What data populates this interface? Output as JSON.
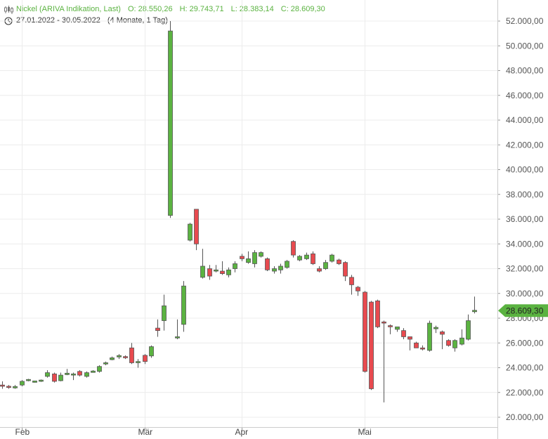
{
  "header": {
    "instrument": "Nickel (ARIVA Indikation, Last)",
    "open": "O: 28.550,26",
    "high": "H: 29.743,71",
    "low": "L: 28.383,14",
    "close": "C: 28.609,30",
    "range": "27.01.2022 - 30.05.2022",
    "period": "(4 Monate, 1 Tag)"
  },
  "colors": {
    "up": "#5bb341",
    "down": "#e84a4f",
    "grid": "#ececec",
    "last_price_tag": "#5bb341"
  },
  "icons": {
    "chart_type": "candlestick-icon",
    "period": "clock-icon"
  },
  "chart_data": {
    "type": "candlestick",
    "ylim": [
      19400,
      53000
    ],
    "y_ticks": [
      "52.000,00",
      "50.000,00",
      "48.000,00",
      "46.000,00",
      "44.000,00",
      "42.000,00",
      "40.000,00",
      "38.000,00",
      "36.000,00",
      "34.000,00",
      "32.000,00",
      "30.000,00",
      "28.000,00",
      "26.000,00",
      "24.000,00",
      "22.000,00",
      "20.000,00"
    ],
    "x_ticks": [
      "Feb",
      "Mär",
      "Apr",
      "Mai"
    ],
    "last_price": "28.609,30",
    "series": [
      {
        "o": 22600,
        "h": 22900,
        "l": 22300,
        "c": 22500
      },
      {
        "o": 22500,
        "h": 22600,
        "l": 22300,
        "c": 22400
      },
      {
        "o": 22400,
        "h": 22600,
        "l": 22300,
        "c": 22450
      },
      {
        "o": 22600,
        "h": 23000,
        "l": 22500,
        "c": 22900
      },
      {
        "o": 22950,
        "h": 23100,
        "l": 22900,
        "c": 23050
      },
      {
        "o": 22850,
        "h": 22950,
        "l": 22800,
        "c": 22900
      },
      {
        "o": 22900,
        "h": 23050,
        "l": 22850,
        "c": 23000
      },
      {
        "o": 23300,
        "h": 23800,
        "l": 23200,
        "c": 23600
      },
      {
        "o": 23500,
        "h": 23600,
        "l": 22800,
        "c": 22900
      },
      {
        "o": 22950,
        "h": 23600,
        "l": 22900,
        "c": 23400
      },
      {
        "o": 23500,
        "h": 23900,
        "l": 23400,
        "c": 23500
      },
      {
        "o": 23400,
        "h": 23600,
        "l": 23000,
        "c": 23500
      },
      {
        "o": 23700,
        "h": 23800,
        "l": 23300,
        "c": 23400
      },
      {
        "o": 23300,
        "h": 23700,
        "l": 23200,
        "c": 23600
      },
      {
        "o": 23650,
        "h": 23800,
        "l": 23600,
        "c": 23700
      },
      {
        "o": 23700,
        "h": 24200,
        "l": 23600,
        "c": 24100
      },
      {
        "o": 24300,
        "h": 24500,
        "l": 24200,
        "c": 24400
      },
      {
        "o": 24650,
        "h": 24900,
        "l": 24600,
        "c": 24800
      },
      {
        "o": 24900,
        "h": 25100,
        "l": 24700,
        "c": 24950
      },
      {
        "o": 24900,
        "h": 25000,
        "l": 24700,
        "c": 24800
      },
      {
        "o": 25600,
        "h": 26000,
        "l": 24300,
        "c": 24400
      },
      {
        "o": 24400,
        "h": 24700,
        "l": 24000,
        "c": 24500
      },
      {
        "o": 25000,
        "h": 25100,
        "l": 24300,
        "c": 24500
      },
      {
        "o": 24950,
        "h": 25800,
        "l": 24800,
        "c": 25700
      },
      {
        "o": 27200,
        "h": 27900,
        "l": 26500,
        "c": 27000
      },
      {
        "o": 27800,
        "h": 29900,
        "l": 27000,
        "c": 29000
      },
      {
        "o": 36300,
        "h": 52000,
        "l": 36100,
        "c": 51200
      },
      {
        "o": 26400,
        "h": 27900,
        "l": 26300,
        "c": 26500
      },
      {
        "o": 27500,
        "h": 31000,
        "l": 26900,
        "c": 30600
      },
      {
        "o": 34300,
        "h": 35700,
        "l": 34200,
        "c": 35600
      },
      {
        "o": 36800,
        "h": 36800,
        "l": 33500,
        "c": 34000
      },
      {
        "o": 31300,
        "h": 33600,
        "l": 31200,
        "c": 32200
      },
      {
        "o": 32000,
        "h": 32300,
        "l": 31100,
        "c": 31400
      },
      {
        "o": 31800,
        "h": 32300,
        "l": 31700,
        "c": 31900
      },
      {
        "o": 31800,
        "h": 32600,
        "l": 31500,
        "c": 31600
      },
      {
        "o": 31500,
        "h": 32100,
        "l": 31300,
        "c": 31900
      },
      {
        "o": 32000,
        "h": 32600,
        "l": 31700,
        "c": 32400
      },
      {
        "o": 33000,
        "h": 33200,
        "l": 32600,
        "c": 32800
      },
      {
        "o": 32500,
        "h": 33400,
        "l": 32400,
        "c": 32800
      },
      {
        "o": 32400,
        "h": 33500,
        "l": 32100,
        "c": 33300
      },
      {
        "o": 33000,
        "h": 33400,
        "l": 32900,
        "c": 33300
      },
      {
        "o": 32800,
        "h": 32900,
        "l": 31800,
        "c": 31900
      },
      {
        "o": 31800,
        "h": 32200,
        "l": 31600,
        "c": 32000
      },
      {
        "o": 31900,
        "h": 32400,
        "l": 31600,
        "c": 32200
      },
      {
        "o": 32100,
        "h": 32700,
        "l": 32000,
        "c": 32600
      },
      {
        "o": 34200,
        "h": 34300,
        "l": 32900,
        "c": 33100
      },
      {
        "o": 32700,
        "h": 33100,
        "l": 32600,
        "c": 33000
      },
      {
        "o": 32800,
        "h": 33300,
        "l": 32700,
        "c": 33100
      },
      {
        "o": 33200,
        "h": 33400,
        "l": 32300,
        "c": 32400
      },
      {
        "o": 32000,
        "h": 32200,
        "l": 31700,
        "c": 31800
      },
      {
        "o": 32000,
        "h": 32700,
        "l": 31900,
        "c": 32500
      },
      {
        "o": 32600,
        "h": 33200,
        "l": 32500,
        "c": 33100
      },
      {
        "o": 32700,
        "h": 32800,
        "l": 32300,
        "c": 32400
      },
      {
        "o": 32500,
        "h": 32600,
        "l": 31000,
        "c": 31400
      },
      {
        "o": 31300,
        "h": 31500,
        "l": 29900,
        "c": 30700
      },
      {
        "o": 30500,
        "h": 30600,
        "l": 29800,
        "c": 30200
      },
      {
        "o": 30100,
        "h": 30200,
        "l": 23600,
        "c": 23700
      },
      {
        "o": 29300,
        "h": 29400,
        "l": 22200,
        "c": 22300
      },
      {
        "o": 29400,
        "h": 29500,
        "l": 27200,
        "c": 27300
      },
      {
        "o": 27700,
        "h": 27800,
        "l": 21200,
        "c": 27600
      },
      {
        "o": 27400,
        "h": 27500,
        "l": 26700,
        "c": 27300
      },
      {
        "o": 27100,
        "h": 27300,
        "l": 26900,
        "c": 27300
      },
      {
        "o": 27000,
        "h": 27200,
        "l": 26300,
        "c": 26500
      },
      {
        "o": 26500,
        "h": 26500,
        "l": 25400,
        "c": 26300
      },
      {
        "o": 26000,
        "h": 26100,
        "l": 25600,
        "c": 25600
      },
      {
        "o": 25600,
        "h": 25800,
        "l": 25400,
        "c": 25500
      },
      {
        "o": 25400,
        "h": 27800,
        "l": 25300,
        "c": 27600
      },
      {
        "o": 27200,
        "h": 27400,
        "l": 26800,
        "c": 27200
      },
      {
        "o": 26900,
        "h": 27000,
        "l": 25500,
        "c": 26700
      },
      {
        "o": 26200,
        "h": 26300,
        "l": 25700,
        "c": 25800
      },
      {
        "o": 25600,
        "h": 26300,
        "l": 25300,
        "c": 26200
      },
      {
        "o": 25900,
        "h": 27100,
        "l": 25800,
        "c": 26400
      },
      {
        "o": 26300,
        "h": 28300,
        "l": 26200,
        "c": 27800
      },
      {
        "o": 28550,
        "h": 29744,
        "l": 28383,
        "c": 28609
      }
    ]
  }
}
